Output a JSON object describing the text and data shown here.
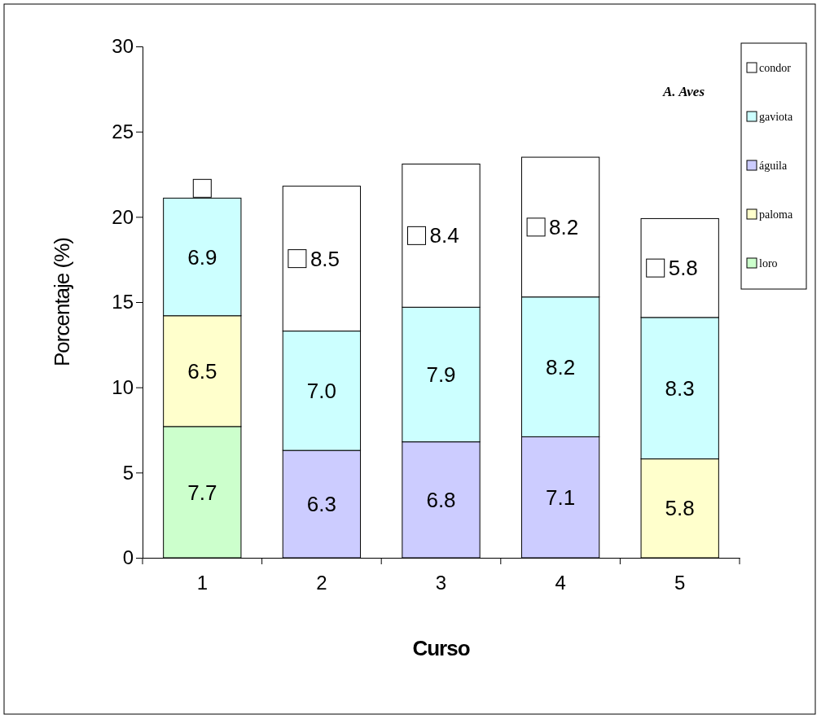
{
  "chart_data": {
    "type": "bar",
    "stacked": true,
    "xlabel": "Curso",
    "ylabel": "Porcentaje (%)",
    "annotations": [
      "A. Aves"
    ],
    "categories": [
      "1",
      "2",
      "3",
      "4",
      "5"
    ],
    "series": [
      {
        "name": "loro",
        "color": "#ccffcc",
        "values": [
          7.7,
          null,
          null,
          null,
          null
        ],
        "value_labels": [
          "7.7",
          null,
          null,
          null,
          null
        ]
      },
      {
        "name": "paloma",
        "color": "#ffffcc",
        "values": [
          6.5,
          null,
          null,
          null,
          5.8
        ],
        "value_labels": [
          "6.5",
          null,
          null,
          null,
          "5.8"
        ]
      },
      {
        "name": "águila",
        "color": "#ccccff",
        "values": [
          null,
          6.3,
          6.8,
          7.1,
          null
        ],
        "value_labels": [
          null,
          "6.3",
          "6.8",
          "7.1",
          null
        ]
      },
      {
        "name": "gaviota",
        "color": "#ccffff",
        "values": [
          6.9,
          7.0,
          7.9,
          8.2,
          8.3
        ],
        "value_labels": [
          "6.9",
          "7.0",
          "7.9",
          "8.2",
          "8.3"
        ]
      },
      {
        "name": "condor",
        "color": "#ffffff",
        "values": [
          0,
          8.5,
          8.4,
          8.2,
          5.8
        ],
        "value_labels": [
          null,
          "8.5",
          "8.4",
          "8.2",
          "5.8"
        ]
      }
    ],
    "ylim": [
      0,
      30
    ],
    "yticks": [
      0,
      5,
      10,
      15,
      20,
      25,
      30
    ],
    "legend": "top right"
  }
}
